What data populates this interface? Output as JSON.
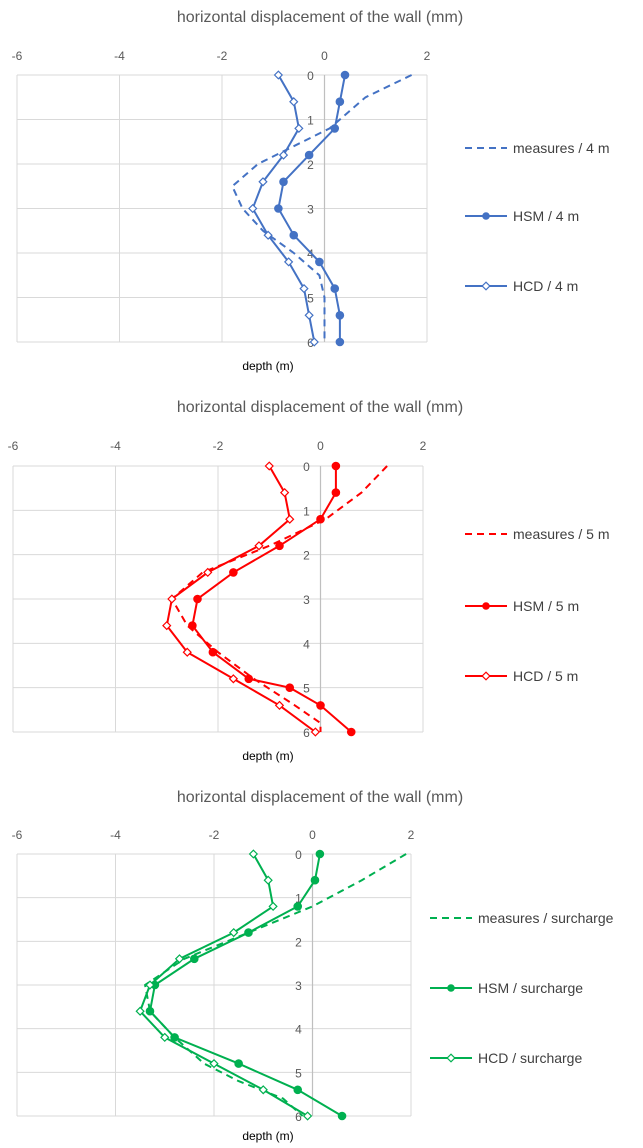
{
  "charts": [
    {
      "title": "horizontal displacement of the wall (mm)",
      "xlabel": "depth (m)",
      "color": "#4472C4",
      "legend": [
        "measures / 4 m",
        "HSM / 4 m",
        "HCD / 4 m"
      ]
    },
    {
      "title": "horizontal displacement of the wall (mm)",
      "xlabel": "depth (m)",
      "color": "#FF0000",
      "legend": [
        "measures / 5 m",
        "HSM / 5 m",
        "HCD / 5 m"
      ]
    },
    {
      "title": "horizontal displacement of the wall (mm)",
      "xlabel": "depth (m)",
      "color": "#00B050",
      "legend": [
        "measures / surcharge",
        "HSM / surcharge",
        "HCD / surcharge"
      ]
    }
  ],
  "chart_data": [
    {
      "type": "line",
      "title": "horizontal displacement of the wall (mm)",
      "xlabel": "depth (m)",
      "x_ticks": [
        "-6",
        "-4",
        "-2",
        "0",
        "2"
      ],
      "y_ticks": [
        "0",
        "1",
        "2",
        "3",
        "4",
        "5",
        "6"
      ],
      "xlim": [
        -6,
        2
      ],
      "ylim": [
        0,
        6
      ],
      "orientation": "depth downward, displacement horizontal",
      "grid": true,
      "legend_position": "right",
      "series": [
        {
          "name": "measures / 4 m",
          "style": "dashed",
          "marker": "none",
          "color": "#4472C4",
          "x": [
            1.7,
            0.8,
            0.1,
            -1.3,
            -1.8,
            -1.6,
            -1.2,
            -0.6,
            -0.1,
            0.0,
            0.0
          ],
          "y": [
            0,
            0.5,
            1.2,
            2.0,
            2.5,
            3.0,
            3.5,
            4.0,
            4.5,
            5.0,
            6.0
          ]
        },
        {
          "name": "HSM / 4 m",
          "style": "solid",
          "marker": "filled-circle",
          "color": "#4472C4",
          "x": [
            0.4,
            0.3,
            0.2,
            -0.3,
            -0.8,
            -0.9,
            -0.6,
            -0.1,
            0.2,
            0.3,
            0.3
          ],
          "y": [
            0,
            0.6,
            1.2,
            1.8,
            2.4,
            3.0,
            3.6,
            4.2,
            4.8,
            5.4,
            6.0
          ]
        },
        {
          "name": "HCD / 4 m",
          "style": "solid",
          "marker": "open-diamond",
          "color": "#4472C4",
          "x": [
            -0.9,
            -0.6,
            -0.5,
            -0.8,
            -1.2,
            -1.4,
            -1.1,
            -0.7,
            -0.4,
            -0.3,
            -0.2
          ],
          "y": [
            0,
            0.6,
            1.2,
            1.8,
            2.4,
            3.0,
            3.6,
            4.2,
            4.8,
            5.4,
            6.0
          ]
        }
      ]
    },
    {
      "type": "line",
      "title": "horizontal displacement of the wall (mm)",
      "xlabel": "depth (m)",
      "x_ticks": [
        "-6",
        "-4",
        "-2",
        "0",
        "2"
      ],
      "y_ticks": [
        "0",
        "1",
        "2",
        "3",
        "4",
        "5",
        "6"
      ],
      "xlim": [
        -6,
        2
      ],
      "ylim": [
        0,
        6
      ],
      "grid": true,
      "legend_position": "right",
      "series": [
        {
          "name": "measures / 5 m",
          "style": "dashed",
          "marker": "none",
          "color": "#FF0000",
          "x": [
            1.3,
            0.8,
            0.1,
            -1.0,
            -2.3,
            -2.9,
            -2.6,
            -2.0,
            -1.3,
            -0.5,
            0.0,
            0.0
          ],
          "y": [
            0,
            0.6,
            1.2,
            1.8,
            2.4,
            3.0,
            3.6,
            4.2,
            4.8,
            5.4,
            5.8,
            6.0
          ]
        },
        {
          "name": "HSM / 5 m",
          "style": "solid",
          "marker": "filled-circle",
          "color": "#FF0000",
          "x": [
            0.3,
            0.3,
            0.0,
            -0.8,
            -1.7,
            -2.4,
            -2.5,
            -2.1,
            -1.4,
            -0.6,
            0.0,
            0.6
          ],
          "y": [
            0,
            0.6,
            1.2,
            1.8,
            2.4,
            3.0,
            3.6,
            4.2,
            4.8,
            5.0,
            5.4,
            6.0
          ]
        },
        {
          "name": "HCD / 5 m",
          "style": "solid",
          "marker": "open-diamond",
          "color": "#FF0000",
          "x": [
            -1.0,
            -0.7,
            -0.6,
            -1.2,
            -2.2,
            -2.9,
            -3.0,
            -2.6,
            -1.7,
            -0.8,
            -0.1
          ],
          "y": [
            0,
            0.6,
            1.2,
            1.8,
            2.4,
            3.0,
            3.6,
            4.2,
            4.8,
            5.4,
            6.0
          ]
        }
      ]
    },
    {
      "type": "line",
      "title": "horizontal displacement of the wall (mm)",
      "xlabel": "depth (m)",
      "x_ticks": [
        "-6",
        "-4",
        "-2",
        "0",
        "2"
      ],
      "y_ticks": [
        "0",
        "1",
        "2",
        "3",
        "4",
        "5",
        "6"
      ],
      "xlim": [
        -6,
        2
      ],
      "ylim": [
        0,
        6
      ],
      "grid": true,
      "legend_position": "right",
      "series": [
        {
          "name": "measures / surcharge",
          "style": "dashed",
          "marker": "none",
          "color": "#00B050",
          "x": [
            1.9,
            1.0,
            0.0,
            -1.3,
            -2.6,
            -3.4,
            -3.3,
            -2.8,
            -2.2,
            -1.5,
            -0.6,
            -0.2
          ],
          "y": [
            0,
            0.6,
            1.2,
            1.8,
            2.4,
            3.0,
            3.6,
            4.2,
            4.8,
            5.2,
            5.6,
            6.0
          ]
        },
        {
          "name": "HSM / surcharge",
          "style": "solid",
          "marker": "filled-circle",
          "color": "#00B050",
          "x": [
            0.15,
            0.05,
            -0.3,
            -1.3,
            -2.4,
            -3.2,
            -3.3,
            -2.8,
            -1.5,
            -0.3,
            0.6
          ],
          "y": [
            0,
            0.6,
            1.2,
            1.8,
            2.4,
            3.0,
            3.6,
            4.2,
            4.8,
            5.4,
            6.0
          ]
        },
        {
          "name": "HCD / surcharge",
          "style": "solid",
          "marker": "open-diamond",
          "color": "#00B050",
          "x": [
            -1.2,
            -0.9,
            -0.8,
            -1.6,
            -2.7,
            -3.3,
            -3.5,
            -3.0,
            -2.0,
            -1.0,
            -0.1
          ],
          "y": [
            0,
            0.6,
            1.2,
            1.8,
            2.4,
            3.0,
            3.6,
            4.2,
            4.8,
            5.4,
            6.0
          ]
        }
      ]
    }
  ]
}
